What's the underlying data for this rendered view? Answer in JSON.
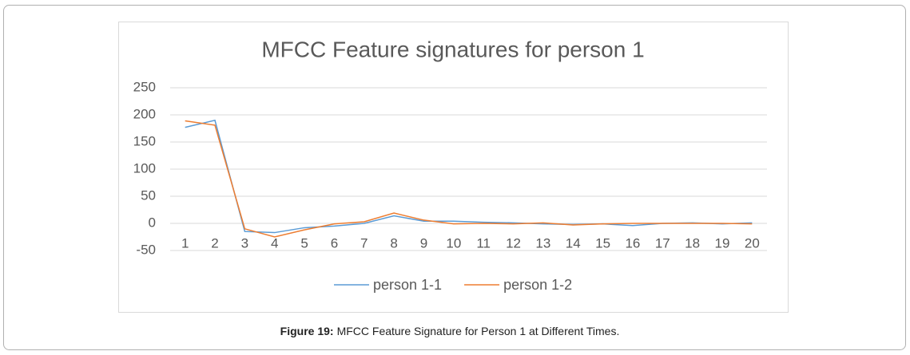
{
  "chart_data": {
    "type": "line",
    "title": "MFCC Feature signatures for person 1",
    "categories": [
      "1",
      "2",
      "3",
      "4",
      "5",
      "6",
      "7",
      "8",
      "9",
      "10",
      "11",
      "12",
      "13",
      "14",
      "15",
      "16",
      "17",
      "18",
      "19",
      "20"
    ],
    "series": [
      {
        "name": "person 1-1",
        "color": "#5b9bd5",
        "values": [
          177,
          190,
          -15,
          -17,
          -8,
          -5,
          0,
          14,
          4,
          4,
          2,
          1,
          -1,
          -2,
          -1,
          -4,
          0,
          1,
          -1,
          1
        ]
      },
      {
        "name": "person 1-2",
        "color": "#ed7d31",
        "values": [
          189,
          181,
          -10,
          -25,
          -12,
          -1,
          3,
          19,
          6,
          -1,
          0,
          -1,
          1,
          -3,
          -1,
          0,
          0,
          0,
          0,
          -1
        ]
      }
    ],
    "ylim": [
      -50,
      250
    ],
    "yticks": [
      -50,
      0,
      50,
      100,
      150,
      200,
      250
    ],
    "grid": true,
    "legend": "bottom"
  },
  "caption": {
    "label": "Figure 19:",
    "text": "MFCC Feature Signature for Person 1 at Different Times."
  }
}
